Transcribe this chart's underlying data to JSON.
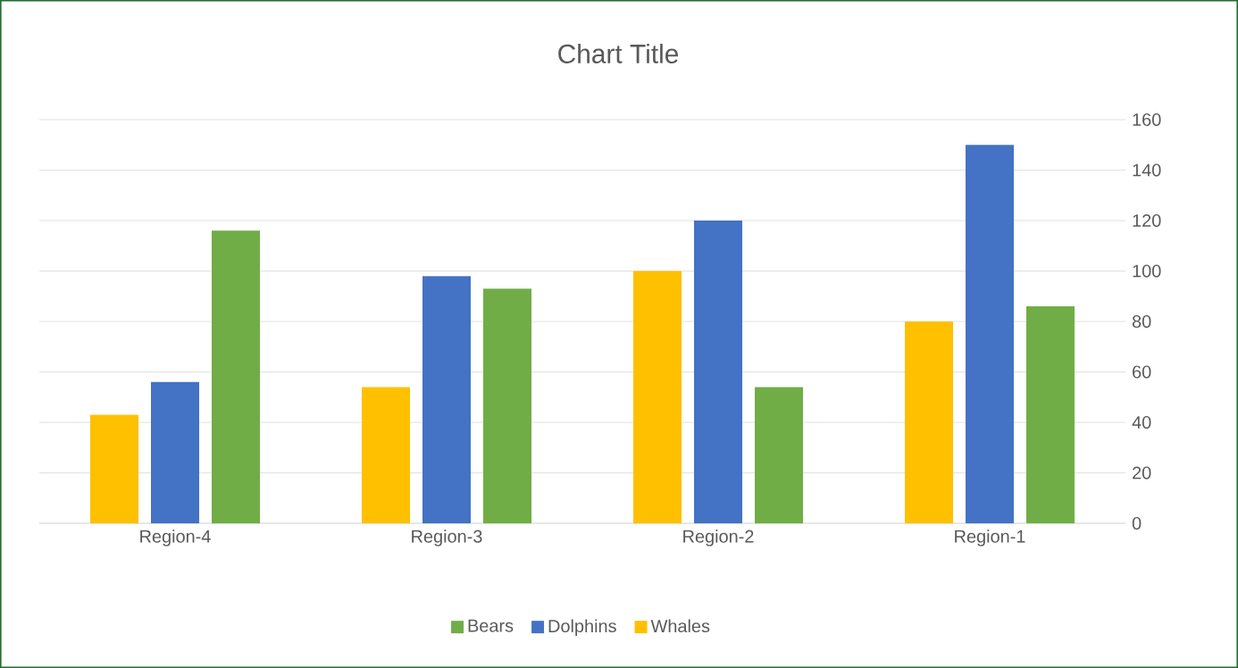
{
  "chart_data": {
    "type": "bar",
    "title": "Chart Title",
    "categories": [
      "Region-4",
      "Region-3",
      "Region-2",
      "Region-1"
    ],
    "series": [
      {
        "name": "Whales",
        "color": "#ffc000",
        "values": [
          43,
          54,
          100,
          80
        ]
      },
      {
        "name": "Dolphins",
        "color": "#4472c4",
        "values": [
          56,
          98,
          120,
          150
        ]
      },
      {
        "name": "Bears",
        "color": "#70ad47",
        "values": [
          116,
          93,
          54,
          86
        ]
      }
    ],
    "ylim": [
      0,
      160
    ],
    "yticks": [
      0,
      20,
      40,
      60,
      80,
      100,
      120,
      140,
      160
    ],
    "grid": "y",
    "legend": "bottom"
  }
}
